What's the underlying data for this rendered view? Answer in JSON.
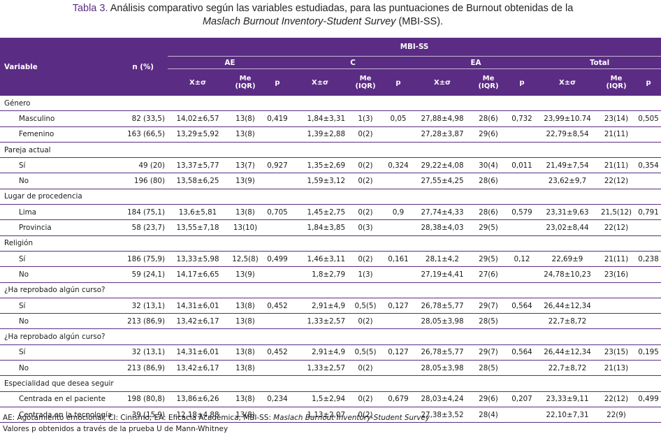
{
  "caption": {
    "label": "Tabla 3.",
    "text_before": " Análisis comparativo según las variables estudiadas, para las puntuaciones de Burnout obtenidas de la",
    "italic": "Maslach Burnout Inventory-Student Survey",
    "text_after": " (MBI-SS)."
  },
  "header": {
    "variable": "Variable",
    "n": "n (%)",
    "mbiss": "MBI-SS",
    "groups": [
      "AE",
      "C",
      "EA",
      "Total"
    ],
    "mean_sd": "X±σ",
    "median": "Me",
    "iqr": "(IQR)",
    "p": "p"
  },
  "sections": [
    {
      "name": "Género",
      "rows": [
        {
          "label": "Masculino",
          "n": "82 (33,5)",
          "ae_m": "14,02±6,57",
          "ae_me": "13(8)",
          "ae_p": "0,419",
          "c_m": "1,84±3,31",
          "c_me": "1(3)",
          "c_p": "0,05",
          "ea_m": "27,88±4,98",
          "ea_me": "28(6)",
          "ea_p": "0,732",
          "t_m": "23,99±10.74",
          "t_me": "23(14)",
          "t_p": "0,505"
        },
        {
          "label": "Femenino",
          "n": "163 (66,5)",
          "ae_m": "13,29±5,92",
          "ae_me": "13(8)",
          "ae_p": "",
          "c_m": "1,39±2,88",
          "c_me": "0(2)",
          "c_p": "",
          "ea_m": "27,28±3,87",
          "ea_me": "29(6)",
          "ea_p": "",
          "t_m": "22,79±8,54",
          "t_me": "21(11)",
          "t_p": ""
        }
      ]
    },
    {
      "name": "Pareja actual",
      "rows": [
        {
          "label": "Sí",
          "n": "49 (20)",
          "ae_m": "13,37±5,77",
          "ae_me": "13(7)",
          "ae_p": "0,927",
          "c_m": "1,35±2,69",
          "c_me": "0(2)",
          "c_p": "0,324",
          "ea_m": "29,22±4,08",
          "ea_me": "30(4)",
          "ea_p": "0,011",
          "t_m": "21,49±7,54",
          "t_me": "21(11)",
          "t_p": "0,354"
        },
        {
          "label": "No",
          "n": "196 (80)",
          "ae_m": "13,58±6,25",
          "ae_me": "13(9)",
          "ae_p": "",
          "c_m": "1,59±3,12",
          "c_me": "0(2)",
          "c_p": "",
          "ea_m": "27,55±4,25",
          "ea_me": "28(6)",
          "ea_p": "",
          "t_m": "23,62±9,7",
          "t_me": "22(12)",
          "t_p": ""
        }
      ]
    },
    {
      "name": "Lugar de procedencia",
      "rows": [
        {
          "label": "Lima",
          "n": "184 (75,1)",
          "ae_m": "13,6±5,81",
          "ae_me": "13(8)",
          "ae_p": "0,705",
          "c_m": "1,45±2,75",
          "c_me": "0(2)",
          "c_p": "0,9",
          "ea_m": "27,74±4,33",
          "ea_me": "28(6)",
          "ea_p": "0,579",
          "t_m": "23,31±9,63",
          "t_me": "21,5(12)",
          "t_p": "0,791"
        },
        {
          "label": "Provincia",
          "n": "58 (23,7)",
          "ae_m": "13,55±7,18",
          "ae_me": "13(10)",
          "ae_p": "",
          "c_m": "1,84±3,85",
          "c_me": "0(3)",
          "c_p": "",
          "ea_m": "28,38±4,03",
          "ea_me": "29(5)",
          "ea_p": "",
          "t_m": "23,02±8,44",
          "t_me": "22(12)",
          "t_p": ""
        }
      ]
    },
    {
      "name": "Religión",
      "rows": [
        {
          "label": "Sí",
          "n": "186 (75,9)",
          "ae_m": "13,33±5,98",
          "ae_me": "12,5(8)",
          "ae_p": "0,499",
          "c_m": "1,46±3,11",
          "c_me": "0(2)",
          "c_p": "0,161",
          "ea_m": "28,1±4,2",
          "ea_me": "29(5)",
          "ea_p": "0,12",
          "t_m": "22,69±9",
          "t_me": "21(11)",
          "t_p": "0,238"
        },
        {
          "label": "No",
          "n": "59 (24,1)",
          "ae_m": "14,17±6,65",
          "ae_me": "13(9)",
          "ae_p": "",
          "c_m": "1,8±2,79",
          "c_me": "1(3)",
          "c_p": "",
          "ea_m": "27,19±4,41",
          "ea_me": "27(6)",
          "ea_p": "",
          "t_m": "24,78±10,23",
          "t_me": "23(16)",
          "t_p": ""
        }
      ]
    },
    {
      "name": "¿Ha reprobado algún curso?",
      "rows": [
        {
          "label": "Sí",
          "n": "32 (13,1)",
          "ae_m": "14,31±6,01",
          "ae_me": "13(8)",
          "ae_p": "0,452",
          "c_m": "2,91±4,9",
          "c_me": "0,5(5)",
          "c_p": "0,127",
          "ea_m": "26,78±5,77",
          "ea_me": "29(7)",
          "ea_p": "0,564",
          "t_m": "26,44±12,34",
          "t_me": "",
          "t_p": ""
        },
        {
          "label": "No",
          "n": "213 (86,9)",
          "ae_m": "13,42±6,17",
          "ae_me": "13(8)",
          "ae_p": "",
          "c_m": "1,33±2,57",
          "c_me": "0(2)",
          "c_p": "",
          "ea_m": "28,05±3,98",
          "ea_me": "28(5)",
          "ea_p": "",
          "t_m": "22,7±8,72",
          "t_me": "",
          "t_p": ""
        }
      ]
    },
    {
      "name": "¿Ha reprobado algún curso?",
      "rows": [
        {
          "label": "Sí",
          "n": "32 (13,1)",
          "ae_m": "14,31±6,01",
          "ae_me": "13(8)",
          "ae_p": "0,452",
          "c_m": "2,91±4,9",
          "c_me": "0,5(5)",
          "c_p": "0,127",
          "ea_m": "26,78±5,77",
          "ea_me": "29(7)",
          "ea_p": "0,564",
          "t_m": "26,44±12,34",
          "t_me": "23(15)",
          "t_p": "0,195"
        },
        {
          "label": "No",
          "n": "213 (86,9)",
          "ae_m": "13,42±6,17",
          "ae_me": "13(8)",
          "ae_p": "",
          "c_m": "1,33±2,57",
          "c_me": "0(2)",
          "c_p": "",
          "ea_m": "28,05±3,98",
          "ea_me": "28(5)",
          "ea_p": "",
          "t_m": "22,7±8,72",
          "t_me": "21(13)",
          "t_p": ""
        }
      ]
    },
    {
      "name": "Especialidad que desea seguir",
      "rows": [
        {
          "label": "Centrada en el paciente",
          "n": "198 (80,8)",
          "ae_m": "13,86±6,26",
          "ae_me": "13(8)",
          "ae_p": "0,234",
          "c_m": "1,5±2,94",
          "c_me": "0(2)",
          "c_p": "0,679",
          "ea_m": "28,03±4,24",
          "ea_me": "29(6)",
          "ea_p": "0,207",
          "t_m": "23,33±9,11",
          "t_me": "22(12)",
          "t_p": "0,499"
        },
        {
          "label": "Centrada en la tecnología",
          "n": "39 (15,9)",
          "ae_m": "12,18±4,88",
          "ae_me": "13(8)",
          "ae_p": "",
          "c_m": "1,13±2,07",
          "c_me": "0(2)",
          "c_p": "",
          "ea_m": "27,38±3,52",
          "ea_me": "28(4)",
          "ea_p": "",
          "t_m": "22,10±7,31",
          "t_me": "22(9)",
          "t_p": ""
        }
      ]
    }
  ],
  "notes": {
    "line1_plain": "AE: Agotamiento emocional; CI: Cinismo; EA: Eficacia Académica; MBI-SS: ",
    "line1_italic": "Maslach Burnout Inventory-Student Survey",
    "line2": "Valores p obtenidos a través de la prueba U de Mann-Whitney"
  },
  "colors": {
    "header_bg": "#5b2c83",
    "caption_label": "#5b2c83"
  }
}
